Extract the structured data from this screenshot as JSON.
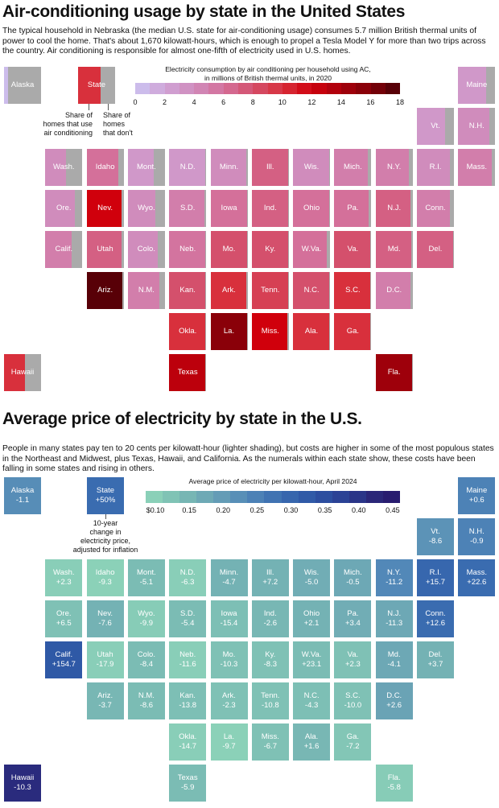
{
  "ac_map": {
    "title": "Air-conditioning usage by state in the United States",
    "description": "The typical household in Nebraska (the median U.S. state for air-conditioning usage) consumes 5.7 million British thermal units of power to cool the home. That's about 1,670 kilowatt-hours, which is enough to propel a Tesla Model Y for more than two trips across the country.  Air conditioning is responsible for almost one-fifth of electricity used in U.S. homes.",
    "legend": {
      "title_line1": "Electricity consumption by air conditioning per household using AC,",
      "title_line2": "in millions of British thermal units, in 2020",
      "ticks": [
        "0",
        "2",
        "4",
        "6",
        "8",
        "10",
        "12",
        "14",
        "16",
        "18"
      ],
      "range": [
        0,
        18
      ],
      "sample_label": "State",
      "note_ac": [
        "Share of",
        "homes that use",
        "air conditioning"
      ],
      "note_no_ac": [
        "Share of",
        "homes",
        "that don't"
      ],
      "gray_color": "#aaaaaa"
    }
  },
  "price_map": {
    "title": "Average price of electricity by state in the U.S.",
    "description": "People in many states pay ten to 20 cents per kilowatt-hour (lighter shading), but costs are higher in some of the most populous states in the Northeast and Midwest, plus Texas, Hawaii, and California. As the numerals within each state show, these costs have been falling in some states and rising in others.",
    "legend": {
      "title": "Average price of electricity per kilowatt-hour, April 2024",
      "ticks": [
        "$0.10",
        "0.15",
        "0.20",
        "0.25",
        "0.30",
        "0.35",
        "0.40",
        "0.45"
      ],
      "range": [
        0.1,
        0.475
      ],
      "sample_label": "State",
      "sample_value": "+50%",
      "note": [
        "10-year",
        "change in",
        "electricity price,",
        "adjusted for inflation"
      ]
    }
  },
  "states": [
    {
      "name": "Alaska",
      "col": 0,
      "row": 0,
      "ac": 0.5,
      "share": 0.1,
      "price": 0.24,
      "change": "-1.1"
    },
    {
      "name": "Maine",
      "col": 11,
      "row": 0,
      "ac": 3,
      "share": 0.75,
      "price": 0.26,
      "change": "+0.6"
    },
    {
      "name": "Vt.",
      "col": 10,
      "row": 1,
      "ac": 3,
      "share": 0.75,
      "price": 0.23,
      "change": "-8.6"
    },
    {
      "name": "N.H.",
      "col": 11,
      "row": 1,
      "ac": 4,
      "share": 0.85,
      "price": 0.26,
      "change": "-0.9"
    },
    {
      "name": "Wash.",
      "col": 1,
      "row": 2,
      "ac": 4,
      "share": 0.55,
      "price": 0.115,
      "change": "+2.3"
    },
    {
      "name": "Idaho",
      "col": 2,
      "row": 2,
      "ac": 6,
      "share": 0.85,
      "price": 0.11,
      "change": "-9.3"
    },
    {
      "name": "Mont.",
      "col": 3,
      "row": 2,
      "ac": 3,
      "share": 0.7,
      "price": 0.15,
      "change": "-5.1"
    },
    {
      "name": "N.D.",
      "col": 4,
      "row": 2,
      "ac": 3,
      "share": 0.98,
      "price": 0.115,
      "change": "-6.3"
    },
    {
      "name": "Minn.",
      "col": 5,
      "row": 2,
      "ac": 4,
      "share": 0.97,
      "price": 0.17,
      "change": "-4.7"
    },
    {
      "name": "Ill.",
      "col": 6,
      "row": 2,
      "ac": 7,
      "share": 0.98,
      "price": 0.17,
      "change": "+7.2"
    },
    {
      "name": "Wis.",
      "col": 7,
      "row": 2,
      "ac": 4,
      "share": 0.97,
      "price": 0.18,
      "change": "-5.0"
    },
    {
      "name": "Mich.",
      "col": 8,
      "row": 2,
      "ac": 5,
      "share": 0.9,
      "price": 0.19,
      "change": "-0.5"
    },
    {
      "name": "N.Y.",
      "col": 9,
      "row": 2,
      "ac": 5,
      "share": 0.9,
      "price": 0.25,
      "change": "-11.2"
    },
    {
      "name": "R.I.",
      "col": 10,
      "row": 2,
      "ac": 4,
      "share": 0.9,
      "price": 0.31,
      "change": "+15.7"
    },
    {
      "name": "Mass.",
      "col": 11,
      "row": 2,
      "ac": 5,
      "share": 0.9,
      "price": 0.3,
      "change": "+22.6"
    },
    {
      "name": "Ore.",
      "col": 1,
      "row": 3,
      "ac": 4,
      "share": 0.8,
      "price": 0.14,
      "change": "+6.5"
    },
    {
      "name": "Nev.",
      "col": 2,
      "row": 3,
      "ac": 12,
      "share": 0.95,
      "price": 0.17,
      "change": "-7.6"
    },
    {
      "name": "Wyo.",
      "col": 3,
      "row": 3,
      "ac": 4,
      "share": 0.75,
      "price": 0.12,
      "change": "-9.9"
    },
    {
      "name": "S.D.",
      "col": 4,
      "row": 3,
      "ac": 5,
      "share": 0.95,
      "price": 0.15,
      "change": "-5.4"
    },
    {
      "name": "Iowa",
      "col": 5,
      "row": 3,
      "ac": 6,
      "share": 0.98,
      "price": 0.145,
      "change": "-15.4"
    },
    {
      "name": "Ind.",
      "col": 6,
      "row": 3,
      "ac": 7,
      "share": 0.98,
      "price": 0.16,
      "change": "-2.6"
    },
    {
      "name": "Ohio",
      "col": 7,
      "row": 3,
      "ac": 6,
      "share": 0.98,
      "price": 0.17,
      "change": "+2.1"
    },
    {
      "name": "Pa.",
      "col": 8,
      "row": 3,
      "ac": 6,
      "share": 0.92,
      "price": 0.18,
      "change": "+3.4"
    },
    {
      "name": "N.J.",
      "col": 9,
      "row": 3,
      "ac": 7,
      "share": 0.95,
      "price": 0.19,
      "change": "-11.3"
    },
    {
      "name": "Conn.",
      "col": 10,
      "row": 3,
      "ac": 5,
      "share": 0.9,
      "price": 0.3,
      "change": "+12.6"
    },
    {
      "name": "Calif.",
      "col": 1,
      "row": 4,
      "ac": 5,
      "share": 0.72,
      "price": 0.34,
      "change": "+154.7"
    },
    {
      "name": "Utah",
      "col": 2,
      "row": 4,
      "ac": 7,
      "share": 0.95,
      "price": 0.115,
      "change": "-17.9"
    },
    {
      "name": "Colo.",
      "col": 3,
      "row": 4,
      "ac": 4,
      "share": 0.8,
      "price": 0.15,
      "change": "-8.4"
    },
    {
      "name": "Neb.",
      "col": 4,
      "row": 4,
      "ac": 5.7,
      "share": 0.97,
      "price": 0.115,
      "change": "-11.6"
    },
    {
      "name": "Mo.",
      "col": 5,
      "row": 4,
      "ac": 8,
      "share": 0.98,
      "price": 0.14,
      "change": "-10.3"
    },
    {
      "name": "Ky.",
      "col": 6,
      "row": 4,
      "ac": 8,
      "share": 0.98,
      "price": 0.14,
      "change": "-8.3"
    },
    {
      "name": "W.Va.",
      "col": 7,
      "row": 4,
      "ac": 6,
      "share": 0.92,
      "price": 0.15,
      "change": "+23.1"
    },
    {
      "name": "Va.",
      "col": 8,
      "row": 4,
      "ac": 8,
      "share": 0.98,
      "price": 0.14,
      "change": "+2.3"
    },
    {
      "name": "Md.",
      "col": 9,
      "row": 4,
      "ac": 7,
      "share": 0.97,
      "price": 0.19,
      "change": "-4.1"
    },
    {
      "name": "Del.",
      "col": 10,
      "row": 4,
      "ac": 7,
      "share": 0.98,
      "price": 0.17,
      "change": "+3.7"
    },
    {
      "name": "Ariz.",
      "col": 2,
      "row": 5,
      "ac": 17.5,
      "share": 0.96,
      "price": 0.16,
      "change": "-3.7"
    },
    {
      "name": "N.M.",
      "col": 3,
      "row": 5,
      "ac": 5,
      "share": 0.85,
      "price": 0.15,
      "change": "-8.6"
    },
    {
      "name": "Kan.",
      "col": 4,
      "row": 5,
      "ac": 8,
      "share": 0.97,
      "price": 0.145,
      "change": "-13.8"
    },
    {
      "name": "Ark.",
      "col": 5,
      "row": 5,
      "ac": 10,
      "share": 0.97,
      "price": 0.14,
      "change": "-2.3"
    },
    {
      "name": "Tenn.",
      "col": 6,
      "row": 5,
      "ac": 9,
      "share": 0.98,
      "price": 0.14,
      "change": "-10.8"
    },
    {
      "name": "N.C.",
      "col": 7,
      "row": 5,
      "ac": 8,
      "share": 0.98,
      "price": 0.145,
      "change": "-4.3"
    },
    {
      "name": "S.C.",
      "col": 8,
      "row": 5,
      "ac": 10,
      "share": 0.98,
      "price": 0.14,
      "change": "-10.0"
    },
    {
      "name": "D.C.",
      "col": 9,
      "row": 5,
      "ac": 5,
      "share": 0.95,
      "price": 0.2,
      "change": "+2.6"
    },
    {
      "name": "Okla.",
      "col": 4,
      "row": 6,
      "ac": 10,
      "share": 0.98,
      "price": 0.115,
      "change": "-14.7"
    },
    {
      "name": "La.",
      "col": 5,
      "row": 6,
      "ac": 15.5,
      "share": 0.98,
      "price": 0.11,
      "change": "-9.7"
    },
    {
      "name": "Miss.",
      "col": 6,
      "row": 6,
      "ac": 12,
      "share": 0.97,
      "price": 0.14,
      "change": "-6.7"
    },
    {
      "name": "Ala.",
      "col": 7,
      "row": 6,
      "ac": 10,
      "share": 0.97,
      "price": 0.16,
      "change": "+1.6"
    },
    {
      "name": "Ga.",
      "col": 8,
      "row": 6,
      "ac": 10,
      "share": 0.98,
      "price": 0.13,
      "change": "-7.2"
    },
    {
      "name": "Hawaii",
      "col": 0,
      "row": 7,
      "ac": 10,
      "share": 0.57,
      "price": 0.43,
      "change": "-10.3"
    },
    {
      "name": "Texas",
      "col": 4,
      "row": 7,
      "ac": 13,
      "share": 0.98,
      "price": 0.15,
      "change": "-5.9"
    },
    {
      "name": "Fla.",
      "col": 9,
      "row": 7,
      "ac": 14.5,
      "share": 0.99,
      "price": 0.12,
      "change": "-5.8"
    }
  ],
  "colors": {
    "ac_scale": [
      "#cbc4f2",
      "#d0a4d6",
      "#d08cbc",
      "#d4709a",
      "#d4506c",
      "#d8303c",
      "#d0000c",
      "#a8000c",
      "#800008",
      "#4a0006"
    ],
    "price_scale": [
      "#8fd6b9",
      "#7bbcb4",
      "#6aa3b5",
      "#5288b8",
      "#3a6cb0",
      "#2c54a4",
      "#2a3c90",
      "#2a1f70",
      "#24156a"
    ]
  }
}
